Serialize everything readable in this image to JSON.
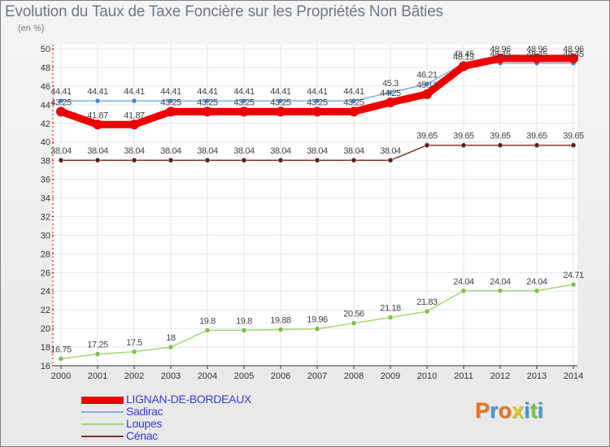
{
  "title": "Evolution du Taux de Taxe Foncière sur les Propriétés Non Bâties",
  "subtitle": "(en %)",
  "logo": {
    "text": "Proxiti",
    "letters": [
      {
        "ch": "P",
        "color": "#e8731a"
      },
      {
        "ch": "r",
        "color": "#3f9ad6"
      },
      {
        "ch": "o",
        "color": "#e8731a"
      },
      {
        "ch": "x",
        "color": "#e2c21b"
      },
      {
        "ch": "i",
        "color": "#3f9ad6"
      },
      {
        "ch": "t",
        "color": "#7cc242"
      },
      {
        "ch": "i",
        "color": "#3f9ad6"
      }
    ]
  },
  "chart_data": {
    "type": "line",
    "title": "Evolution du Taux de Taxe Foncière sur les Propriétés Non Bâties",
    "ylabel": "(en %)",
    "xlabel": "",
    "ylim": [
      16,
      50
    ],
    "yticks": [
      16,
      18,
      20,
      22,
      24,
      26,
      28,
      30,
      32,
      34,
      36,
      38,
      40,
      42,
      44,
      46,
      48,
      50
    ],
    "grid": true,
    "legend": "bottom-left",
    "x": [
      "2000",
      "2001",
      "2002",
      "2003",
      "2004",
      "2005",
      "2006",
      "2007",
      "2008",
      "2009",
      "2010",
      "2011",
      "2012",
      "2013",
      "2014"
    ],
    "series": [
      {
        "name": "LIGNAN-DE-BORDEAUX",
        "color": "#ee0000",
        "width": 9,
        "values": [
          43.25,
          41.87,
          41.87,
          43.25,
          43.25,
          43.25,
          43.25,
          43.25,
          43.25,
          44.25,
          45.13,
          48.13,
          48.96,
          48.96,
          48.96
        ],
        "labels": [
          "43.25",
          "41.87",
          "41.87",
          "43.25",
          "43.25",
          "43.25",
          "43.25",
          "43.25",
          "43.25",
          "44.25",
          "45.13",
          "48.13",
          "48.96",
          "48.96",
          "48.96"
        ]
      },
      {
        "name": "Sadirac",
        "color": "#7fb1dc",
        "width": 1.5,
        "marker": "#3f86cf",
        "values": [
          44.41,
          44.41,
          44.41,
          44.41,
          44.41,
          44.41,
          44.41,
          44.41,
          44.41,
          45.3,
          46.21,
          48.45,
          48.45,
          48.45,
          48.45
        ],
        "labels": [
          "44.41",
          "44.41",
          "44.41",
          "44.41",
          "44.41",
          "44.41",
          "44.41",
          "44.41",
          "44.41",
          "45.3",
          "46.21",
          "48.45",
          "48.45",
          "48.45",
          "48.45"
        ]
      },
      {
        "name": "Loupes",
        "color": "#a3d67a",
        "width": 1.5,
        "marker": "#7cc242",
        "values": [
          16.75,
          17.25,
          17.5,
          18.0,
          19.8,
          19.8,
          19.88,
          19.96,
          20.56,
          21.18,
          21.83,
          24.04,
          24.04,
          24.04,
          24.71
        ],
        "labels": [
          "16.75",
          "17.25",
          "17.5",
          "18",
          "19.8",
          "19.8",
          "19.88",
          "19.96",
          "20.56",
          "21.18",
          "21.83",
          "24.04",
          "24.04",
          "24.04",
          "24.71"
        ]
      },
      {
        "name": "Cénac",
        "color": "#7a3535",
        "width": 1.5,
        "marker": "#5a1f1f",
        "values": [
          38.04,
          38.04,
          38.04,
          38.04,
          38.04,
          38.04,
          38.04,
          38.04,
          38.04,
          38.04,
          39.65,
          39.65,
          39.65,
          39.65,
          39.65
        ],
        "labels": [
          "38.04",
          "38.04",
          "38.04",
          "38.04",
          "38.04",
          "38.04",
          "38.04",
          "38.04",
          "38.04",
          "38.04",
          "39.65",
          "39.65",
          "39.65",
          "39.65",
          "39.65"
        ]
      }
    ]
  }
}
